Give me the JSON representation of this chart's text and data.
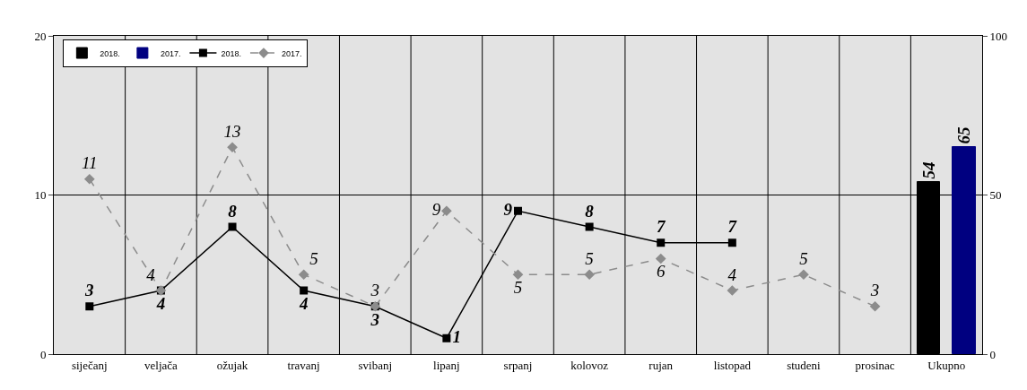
{
  "chart_data": {
    "type": "line",
    "categories": [
      "siječanj",
      "veljača",
      "ožujak",
      "travanj",
      "svibanj",
      "lipanj",
      "srpanj",
      "kolovoz",
      "rujan",
      "listopad",
      "studeni",
      "prosinac",
      "Ukupno"
    ],
    "series": [
      {
        "name": "2018.",
        "type": "bar",
        "axis": "y2",
        "color": "#000000",
        "values": [
          null,
          null,
          null,
          null,
          null,
          null,
          null,
          null,
          null,
          null,
          null,
          null,
          54
        ]
      },
      {
        "name": "2017.",
        "type": "bar",
        "axis": "y2",
        "color": "#000080",
        "values": [
          null,
          null,
          null,
          null,
          null,
          null,
          null,
          null,
          null,
          null,
          null,
          null,
          65
        ]
      },
      {
        "name": "2018.",
        "color": "#000000",
        "marker": "square",
        "line_style": "solid",
        "values": [
          3,
          4,
          8,
          4,
          3,
          1,
          9,
          8,
          7,
          7,
          null,
          null,
          null
        ]
      },
      {
        "name": "2017.",
        "color": "#8c8c8c",
        "marker": "diamond",
        "line_style": "dashed",
        "values": [
          11,
          4,
          13,
          5,
          3,
          9,
          5,
          5,
          6,
          4,
          5,
          3,
          null
        ]
      }
    ],
    "ylim": [
      0,
      20
    ],
    "yticks": [
      0,
      10,
      20
    ],
    "y2lim": [
      0,
      100
    ],
    "y2ticks": [
      0,
      50,
      100
    ],
    "grid": true,
    "legend": "top left",
    "data_labels": true
  }
}
